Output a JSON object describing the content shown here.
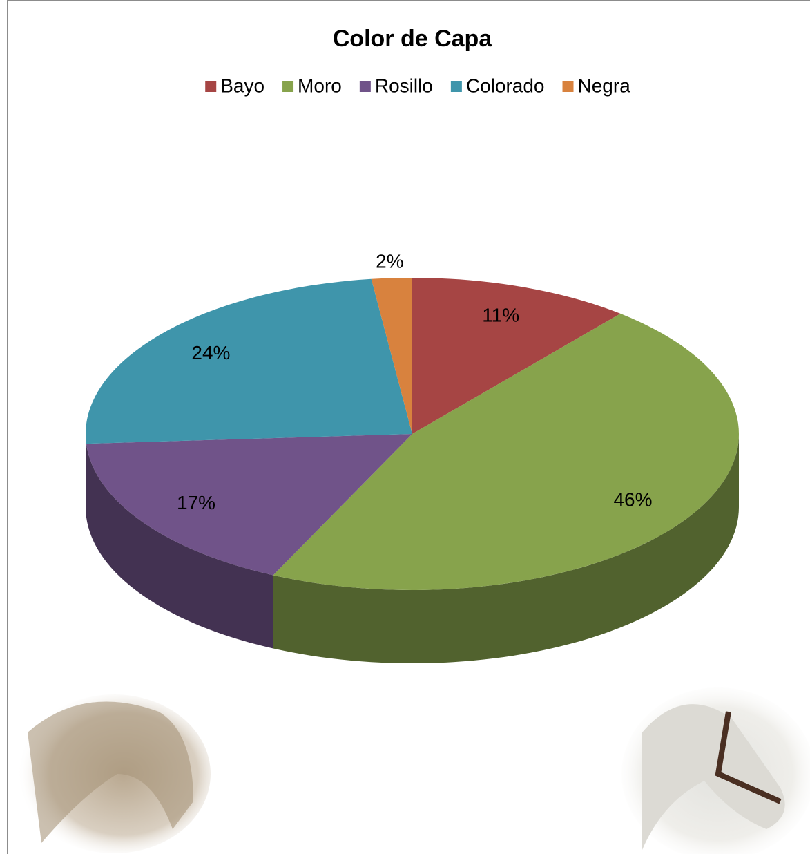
{
  "chart_data": {
    "type": "pie3d",
    "title": "Color de Capa",
    "categories": [
      "Bayo",
      "Moro",
      "Rosillo",
      "Colorado",
      "Negra"
    ],
    "values": [
      11,
      46,
      17,
      24,
      2
    ],
    "value_labels": [
      "11%",
      "46%",
      "17%",
      "24%",
      "2%"
    ],
    "colors": [
      "#a64544",
      "#87a34c",
      "#705389",
      "#3f95ab",
      "#d8823e"
    ],
    "legend": "top"
  }
}
